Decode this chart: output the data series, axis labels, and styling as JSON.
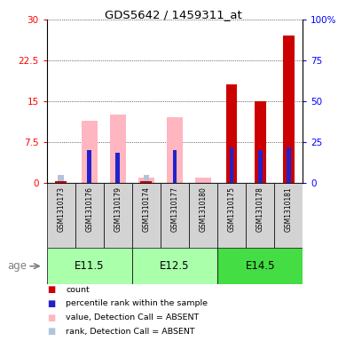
{
  "title": "GDS5642 / 1459311_at",
  "samples": [
    "GSM1310173",
    "GSM1310176",
    "GSM1310179",
    "GSM1310174",
    "GSM1310177",
    "GSM1310180",
    "GSM1310175",
    "GSM1310178",
    "GSM1310181"
  ],
  "count_values": [
    0.3,
    0.0,
    0.0,
    0.3,
    0.0,
    0.0,
    18.0,
    15.0,
    27.0
  ],
  "rank_values": [
    0.0,
    6.0,
    5.5,
    0.0,
    6.0,
    0.0,
    6.5,
    6.0,
    6.5
  ],
  "absent_value_values": [
    0.0,
    11.5,
    12.5,
    1.0,
    12.0,
    1.0,
    0.0,
    0.0,
    0.0
  ],
  "absent_rank_values": [
    1.5,
    0.0,
    0.0,
    1.5,
    0.0,
    0.0,
    0.0,
    0.0,
    0.0
  ],
  "left_ylim": [
    0,
    30
  ],
  "right_ylim": [
    0,
    100
  ],
  "left_yticks": [
    0,
    7.5,
    15,
    22.5,
    30
  ],
  "right_yticks": [
    0,
    25,
    50,
    75,
    100
  ],
  "right_yticklabels": [
    "0",
    "25",
    "50",
    "75",
    "100%"
  ],
  "count_color": "#CC0000",
  "rank_color": "#2222CC",
  "absent_value_color": "#FFB6C1",
  "absent_rank_color": "#B0C4DE",
  "age_groups": [
    {
      "label": "E11.5",
      "start": 0,
      "end": 3,
      "color": "#AAFFAA"
    },
    {
      "label": "E12.5",
      "start": 3,
      "end": 6,
      "color": "#AAFFAA"
    },
    {
      "label": "E14.5",
      "start": 6,
      "end": 9,
      "color": "#44DD44"
    }
  ]
}
